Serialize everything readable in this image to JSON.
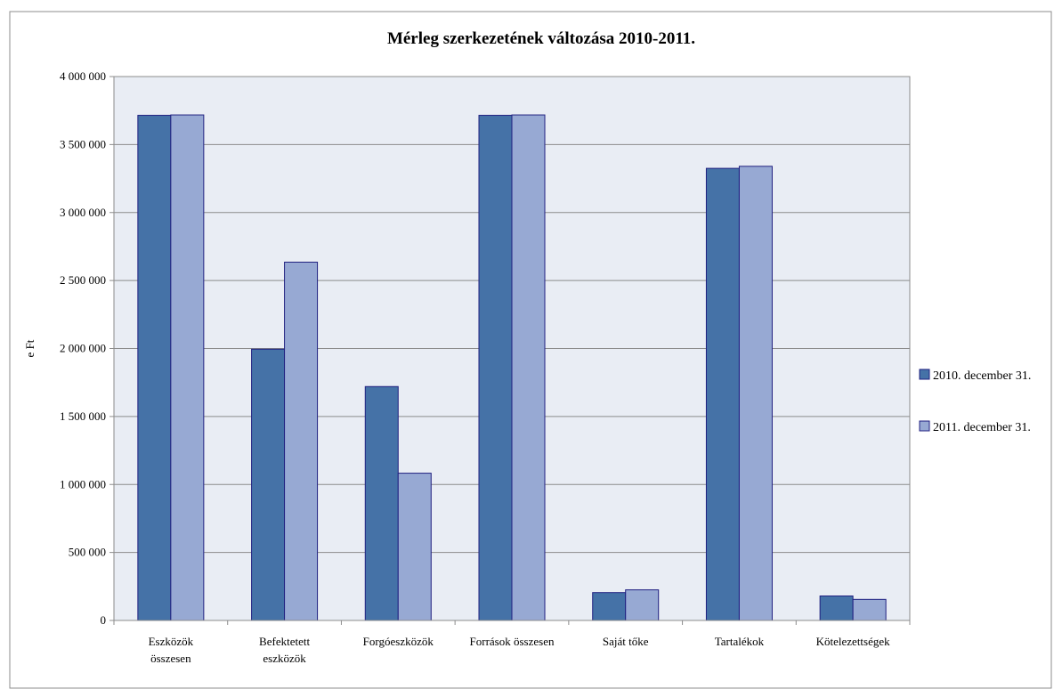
{
  "chart_data": {
    "type": "bar",
    "title": "Mérleg szerkezetének változása 2010-2011.",
    "ylabel": "e Ft",
    "xlabel": "",
    "ylim": [
      0,
      4000000
    ],
    "ytick_step": 500000,
    "yticks": [
      "0",
      "500 000",
      "1 000 000",
      "1 500 000",
      "2 000 000",
      "2 500 000",
      "3 000 000",
      "3 500 000",
      "4 000 000"
    ],
    "grid": true,
    "legend_position": "right",
    "categories": [
      [
        "Eszközök",
        "összesen"
      ],
      [
        "Befektetett",
        "eszközök"
      ],
      [
        "Forgóeszközök"
      ],
      [
        "Források összesen"
      ],
      [
        "Saját tőke"
      ],
      [
        "Tartalékok"
      ],
      [
        "Kötelezettségek"
      ]
    ],
    "series": [
      {
        "name": "2010. december 31.",
        "color": "#4572a7",
        "values": [
          3715000,
          1995000,
          1720000,
          3715000,
          205000,
          3325000,
          180000
        ]
      },
      {
        "name": "2011. december 31.",
        "color": "#97a9d3",
        "values": [
          3718000,
          2635000,
          1083000,
          3718000,
          225000,
          3340000,
          155000
        ]
      }
    ],
    "plot_background": "#e9edf4",
    "bar_stroke": "#202080"
  }
}
